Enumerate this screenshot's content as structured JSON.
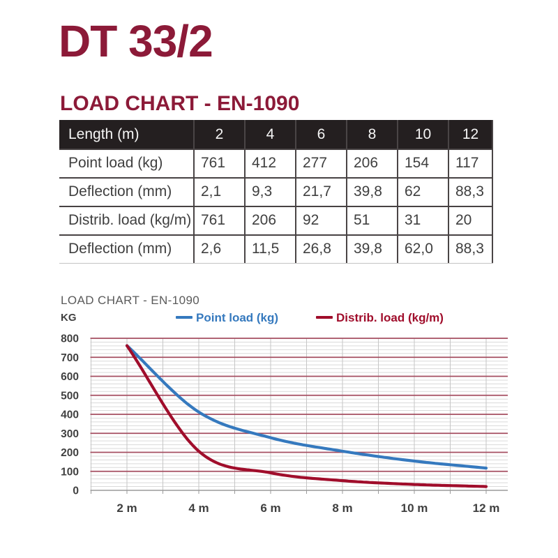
{
  "page": {
    "title": "DT 33/2",
    "section_heading": "LOAD CHART - EN-1090"
  },
  "table": {
    "header": {
      "label": "Length (m)",
      "values": [
        "2",
        "4",
        "6",
        "8",
        "10",
        "12"
      ]
    },
    "rows": [
      {
        "label": "Point load (kg)",
        "values": [
          "761",
          "412",
          "277",
          "206",
          "154",
          "117"
        ]
      },
      {
        "label": "Deflection (mm)",
        "values": [
          "2,1",
          "9,3",
          "21,7",
          "39,8",
          "62",
          "88,3"
        ]
      },
      {
        "label": "Distrib. load (kg/m)",
        "values": [
          "761",
          "206",
          "92",
          "51",
          "31",
          "20"
        ]
      },
      {
        "label": "Deflection (mm)",
        "values": [
          "2,6",
          "11,5",
          "26,8",
          "39,8",
          "62,0",
          "88,3"
        ]
      }
    ]
  },
  "chart_data": {
    "type": "line",
    "title": "LOAD CHART - EN-1090",
    "ylabel": "KG",
    "xlabel": "",
    "x": [
      2,
      4,
      6,
      8,
      10,
      12
    ],
    "x_tick_labels": [
      "2 m",
      "4 m",
      "6 m",
      "8 m",
      "10 m",
      "12 m"
    ],
    "ylim": [
      0,
      800
    ],
    "y_tick_step": 100,
    "y_minor_step": 20,
    "x_minor_step_m": 1,
    "grid": "on",
    "legend_position": "top",
    "series": [
      {
        "name": "Point load (kg)",
        "color": "#3579BE",
        "values": [
          761,
          412,
          277,
          206,
          154,
          117
        ]
      },
      {
        "name": "Distrib. load (kg/m)",
        "color": "#A00D2B",
        "values": [
          761,
          206,
          92,
          51,
          31,
          20
        ]
      }
    ],
    "colors": {
      "major_grid": "#A54E60",
      "minor_grid": "#DADADA",
      "vertical_grid": "#C6C6C6",
      "axis_line": "#9A9A9A",
      "tick_label": "#404040"
    }
  }
}
